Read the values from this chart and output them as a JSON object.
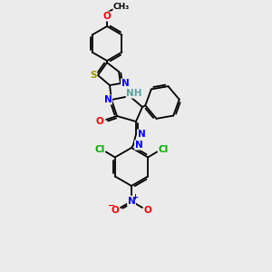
{
  "bg_color": "#ebebeb",
  "atom_colors": {
    "N": "#0000ff",
    "O": "#ff0000",
    "S": "#999900",
    "Cl": "#00aa00",
    "C": "#000000",
    "H": "#5f9f9f"
  },
  "bond_color": "#000000"
}
